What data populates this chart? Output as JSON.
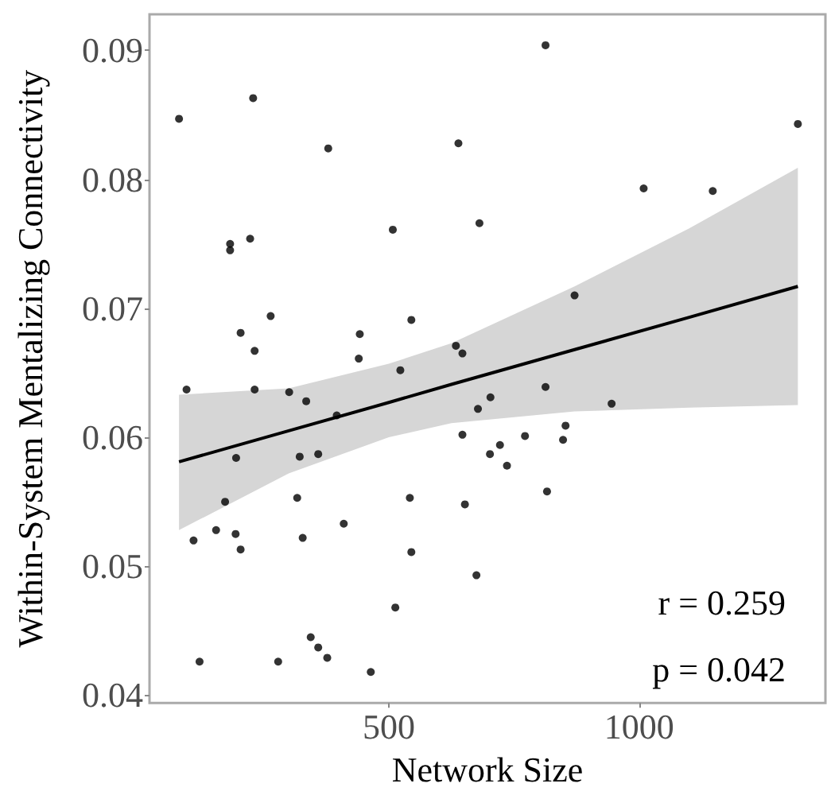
{
  "chart_data": {
    "type": "scatter",
    "xlabel": "Network Size",
    "ylabel": "Within-System Mentalizing Connectivity",
    "xlim": [
      22,
      1372
    ],
    "ylim": [
      0.0394,
      0.0928
    ],
    "xticks": [
      500,
      1000
    ],
    "yticks": [
      0.04,
      0.05,
      0.06,
      0.07,
      0.08,
      0.09
    ],
    "grid": false,
    "annotations": [
      "r = 0.259",
      "p = 0.042"
    ],
    "series": [
      {
        "marker": "circle",
        "color": "#000000",
        "x": [
          81,
          229,
          379,
          639,
          183,
          183,
          223,
          508,
          264,
          545,
          204,
          442,
          232,
          440,
          634,
          647,
          813,
          1317,
          681,
          1009,
          1147,
          871,
          96,
          232,
          301,
          335,
          396,
          523,
          647,
          195,
          322,
          359,
          173,
          317,
          542,
          652,
          110,
          155,
          194,
          204,
          328,
          410,
          545,
          513,
          344,
          359,
          377,
          122,
          279,
          464,
          813,
          703,
          678,
          945,
          853,
          848,
          772,
          722,
          702,
          736,
          816,
          675
        ],
        "values": [
          0.0847,
          0.0863,
          0.0824,
          0.0828,
          0.075,
          0.0745,
          0.0754,
          0.0761,
          0.0694,
          0.0691,
          0.0681,
          0.068,
          0.0667,
          0.0661,
          0.0671,
          0.0665,
          0.0904,
          0.0843,
          0.0766,
          0.0793,
          0.0791,
          0.071,
          0.0637,
          0.0637,
          0.0635,
          0.0628,
          0.0617,
          0.0652,
          0.0602,
          0.0584,
          0.0585,
          0.0587,
          0.055,
          0.0553,
          0.0553,
          0.0548,
          0.052,
          0.0528,
          0.0525,
          0.0513,
          0.0522,
          0.0533,
          0.0511,
          0.0468,
          0.0445,
          0.0437,
          0.0429,
          0.0426,
          0.0426,
          0.0418,
          0.0639,
          0.0631,
          0.0622,
          0.0626,
          0.0609,
          0.0598,
          0.0601,
          0.0594,
          0.0587,
          0.0578,
          0.0558,
          0.0493
        ]
      },
      {
        "type": "line",
        "color": "#000000",
        "x": [
          81,
          300,
          500,
          625,
          871,
          1100,
          1317
        ],
        "values": [
          0.0581,
          0.0605,
          0.0627,
          0.0641,
          0.0668,
          0.0693,
          0.0717
        ],
        "lower": [
          0.0528,
          0.0572,
          0.06,
          0.0611,
          0.062,
          0.0623,
          0.0625
        ],
        "upper": [
          0.0633,
          0.0638,
          0.0657,
          0.0673,
          0.0717,
          0.0762,
          0.0809
        ]
      }
    ]
  }
}
